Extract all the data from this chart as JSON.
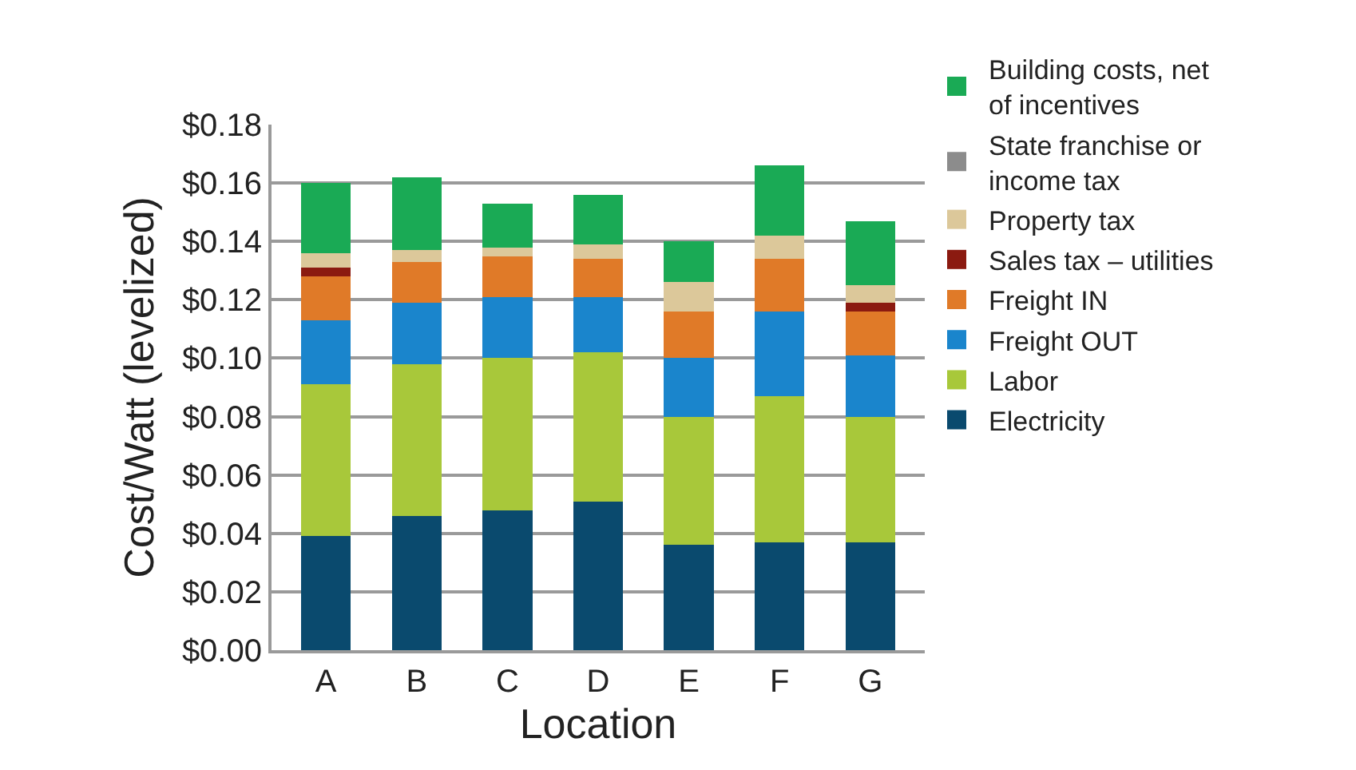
{
  "chart_data": {
    "type": "bar",
    "stacked": true,
    "xlabel": "Location",
    "ylabel": "Cost/Watt (levelized)",
    "categories": [
      "A",
      "B",
      "C",
      "D",
      "E",
      "F",
      "G"
    ],
    "series": [
      {
        "name": "Electricity",
        "color": "#0a4a6e",
        "values": [
          0.039,
          0.046,
          0.048,
          0.051,
          0.036,
          0.037,
          0.037
        ]
      },
      {
        "name": "Labor",
        "color": "#a8c83a",
        "values": [
          0.052,
          0.052,
          0.052,
          0.051,
          0.044,
          0.05,
          0.043
        ]
      },
      {
        "name": "Freight OUT",
        "color": "#1a85cc",
        "values": [
          0.022,
          0.021,
          0.021,
          0.019,
          0.02,
          0.029,
          0.021
        ]
      },
      {
        "name": "Freight IN",
        "color": "#e07a28",
        "values": [
          0.015,
          0.014,
          0.014,
          0.013,
          0.016,
          0.018,
          0.015
        ]
      },
      {
        "name": "Sales tax – utilities",
        "color": "#8b1a10",
        "values": [
          0.003,
          0,
          0,
          0,
          0,
          0,
          0.003
        ]
      },
      {
        "name": "Property tax",
        "color": "#dcc89a",
        "values": [
          0.005,
          0.004,
          0.003,
          0.005,
          0.01,
          0.008,
          0.006
        ]
      },
      {
        "name": "State franchise or income tax",
        "color": "#8c8c8c",
        "values": [
          0,
          0,
          0,
          0,
          0,
          0,
          0
        ]
      },
      {
        "name": "Building costs, net of incentives",
        "color": "#1aaa55",
        "values": [
          0.024,
          0.025,
          0.015,
          0.017,
          0.014,
          0.024,
          0.022
        ]
      }
    ],
    "ylim": [
      0,
      0.18
    ],
    "yticks": [
      {
        "value": 0,
        "label": "$0.00"
      },
      {
        "value": 0.02,
        "label": "$0.02"
      },
      {
        "value": 0.04,
        "label": "$0.04"
      },
      {
        "value": 0.06,
        "label": "$0.06"
      },
      {
        "value": 0.08,
        "label": "$0.08"
      },
      {
        "value": 0.1,
        "label": "$0.10"
      },
      {
        "value": 0.12,
        "label": "$0.12"
      },
      {
        "value": 0.14,
        "label": "$0.14"
      },
      {
        "value": 0.16,
        "label": "$0.16"
      },
      {
        "value": 0.18,
        "label": "$0.18"
      }
    ],
    "grid": "y",
    "legend": "right"
  }
}
